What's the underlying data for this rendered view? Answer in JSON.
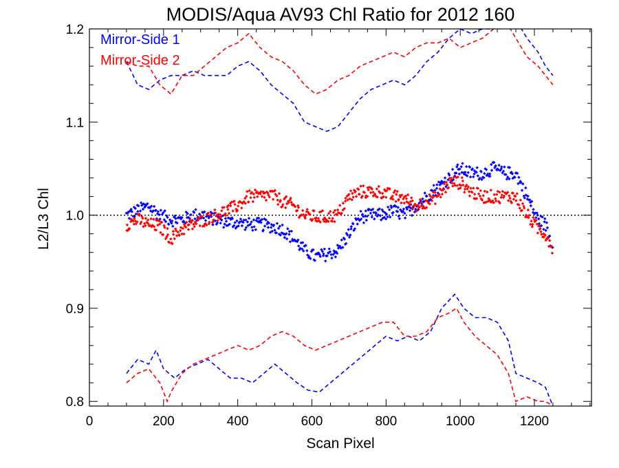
{
  "chart_data": {
    "type": "scatter",
    "title": "MODIS/Aqua AV93 Chl Ratio for 2012 160",
    "xlabel": "Scan Pixel",
    "ylabel": "L2/L3 Chl",
    "xlim": [
      0,
      1354
    ],
    "ylim": [
      0.795,
      1.2
    ],
    "xticks": [
      0,
      200,
      400,
      600,
      800,
      1000,
      1200
    ],
    "yticks": [
      0.8,
      0.9,
      1.0,
      1.1,
      1.2
    ],
    "xtick_labels": [
      "0",
      "200",
      "400",
      "600",
      "800",
      "1000",
      "1200"
    ],
    "ytick_labels": [
      "0.8",
      "0.9",
      "1.0",
      "1.1",
      "1.2"
    ],
    "reference_line": {
      "y": 1.0,
      "style": "dotted",
      "color": "#000000"
    },
    "legend": {
      "position": "top-left",
      "entries": [
        "Mirror-Side 1",
        "Mirror-Side 2"
      ]
    },
    "series": [
      {
        "name": "Mirror-Side 1",
        "color": "#0000ff",
        "mean": {
          "x": [
            100,
            130,
            160,
            190,
            220,
            250,
            280,
            310,
            340,
            370,
            400,
            430,
            460,
            490,
            520,
            550,
            580,
            610,
            640,
            670,
            700,
            730,
            760,
            790,
            820,
            850,
            880,
            910,
            940,
            970,
            1000,
            1030,
            1060,
            1090,
            1120,
            1150,
            1180,
            1210,
            1230,
            1250
          ],
          "y": [
            1.0,
            1.005,
            1.01,
            1.0,
            0.995,
            0.995,
            1.0,
            1.0,
            0.995,
            0.993,
            0.992,
            0.99,
            0.99,
            0.988,
            0.985,
            0.975,
            0.962,
            0.955,
            0.958,
            0.962,
            0.98,
            0.998,
            1.0,
            1.0,
            1.005,
            1.0,
            1.01,
            1.02,
            1.03,
            1.04,
            1.05,
            1.045,
            1.045,
            1.05,
            1.045,
            1.045,
            1.02,
            0.995,
            0.99,
            0.965
          ]
        },
        "upper": {
          "x": [
            100,
            130,
            160,
            190,
            220,
            250,
            280,
            310,
            340,
            370,
            400,
            430,
            460,
            490,
            520,
            550,
            580,
            610,
            640,
            670,
            700,
            730,
            760,
            790,
            820,
            850,
            880,
            910,
            940,
            970,
            1000,
            1030,
            1060,
            1090,
            1120,
            1150,
            1180,
            1210,
            1230,
            1250
          ],
          "y": [
            1.165,
            1.14,
            1.135,
            1.145,
            1.15,
            1.15,
            1.155,
            1.15,
            1.15,
            1.15,
            1.16,
            1.165,
            1.155,
            1.14,
            1.13,
            1.12,
            1.1,
            1.095,
            1.09,
            1.095,
            1.11,
            1.125,
            1.135,
            1.14,
            1.145,
            1.14,
            1.15,
            1.165,
            1.175,
            1.19,
            1.2,
            1.195,
            1.2,
            1.2,
            1.205,
            1.21,
            1.19,
            1.175,
            1.16,
            1.15
          ]
        },
        "lower": {
          "x": [
            100,
            130,
            160,
            180,
            200,
            230,
            260,
            290,
            320,
            350,
            380,
            410,
            440,
            470,
            500,
            530,
            560,
            590,
            620,
            650,
            680,
            710,
            740,
            770,
            800,
            830,
            860,
            890,
            920,
            950,
            985,
            1010,
            1040,
            1070,
            1100,
            1130,
            1150,
            1180,
            1210,
            1230,
            1250
          ],
          "y": [
            0.83,
            0.845,
            0.84,
            0.855,
            0.835,
            0.825,
            0.835,
            0.84,
            0.845,
            0.835,
            0.825,
            0.825,
            0.82,
            0.83,
            0.84,
            0.83,
            0.82,
            0.812,
            0.81,
            0.82,
            0.83,
            0.84,
            0.85,
            0.86,
            0.87,
            0.865,
            0.87,
            0.865,
            0.875,
            0.9,
            0.915,
            0.9,
            0.89,
            0.89,
            0.885,
            0.865,
            0.83,
            0.825,
            0.82,
            0.815,
            0.795
          ]
        }
      },
      {
        "name": "Mirror-Side 2",
        "color": "#ff0000",
        "mean": {
          "x": [
            100,
            130,
            160,
            190,
            220,
            250,
            280,
            310,
            340,
            370,
            400,
            430,
            460,
            490,
            520,
            550,
            580,
            610,
            640,
            670,
            700,
            730,
            760,
            790,
            820,
            850,
            880,
            910,
            940,
            970,
            1000,
            1030,
            1060,
            1090,
            1120,
            1150,
            1180,
            1210,
            1230,
            1250
          ],
          "y": [
            0.99,
            0.995,
            0.99,
            0.988,
            0.975,
            0.985,
            0.99,
            0.995,
            1.0,
            1.005,
            1.01,
            1.02,
            1.02,
            1.022,
            1.015,
            1.01,
            1.0,
            0.998,
            0.998,
            1.0,
            1.02,
            1.025,
            1.025,
            1.025,
            1.02,
            1.018,
            1.01,
            1.015,
            1.02,
            1.035,
            1.035,
            1.025,
            1.02,
            1.02,
            1.02,
            1.02,
            1.0,
            0.985,
            0.98,
            0.965
          ]
        },
        "upper": {
          "x": [
            100,
            130,
            160,
            190,
            220,
            250,
            280,
            310,
            340,
            370,
            400,
            430,
            460,
            490,
            520,
            550,
            580,
            610,
            640,
            670,
            700,
            730,
            760,
            790,
            820,
            850,
            880,
            910,
            940,
            970,
            1000,
            1030,
            1060,
            1090,
            1120,
            1150,
            1180,
            1210,
            1230,
            1250
          ],
          "y": [
            1.165,
            1.16,
            1.16,
            1.14,
            1.13,
            1.15,
            1.15,
            1.16,
            1.17,
            1.18,
            1.185,
            1.195,
            1.18,
            1.17,
            1.165,
            1.155,
            1.14,
            1.13,
            1.135,
            1.145,
            1.15,
            1.16,
            1.165,
            1.17,
            1.175,
            1.17,
            1.18,
            1.185,
            1.185,
            1.19,
            1.18,
            1.185,
            1.19,
            1.2,
            1.21,
            1.19,
            1.17,
            1.16,
            1.15,
            1.14
          ]
        },
        "lower": {
          "x": [
            100,
            130,
            160,
            190,
            210,
            220,
            250,
            280,
            310,
            340,
            370,
            400,
            430,
            460,
            490,
            520,
            550,
            580,
            610,
            640,
            670,
            700,
            730,
            760,
            790,
            820,
            850,
            880,
            910,
            940,
            970,
            990,
            1010,
            1040,
            1070,
            1100,
            1130,
            1150,
            1180,
            1210,
            1230,
            1250
          ],
          "y": [
            0.82,
            0.83,
            0.835,
            0.82,
            0.8,
            0.81,
            0.83,
            0.84,
            0.845,
            0.85,
            0.855,
            0.86,
            0.855,
            0.86,
            0.87,
            0.875,
            0.87,
            0.86,
            0.855,
            0.86,
            0.865,
            0.87,
            0.875,
            0.88,
            0.885,
            0.885,
            0.87,
            0.87,
            0.875,
            0.89,
            0.895,
            0.9,
            0.885,
            0.87,
            0.86,
            0.85,
            0.83,
            0.8,
            0.805,
            0.8,
            0.8,
            0.795
          ]
        }
      }
    ]
  }
}
